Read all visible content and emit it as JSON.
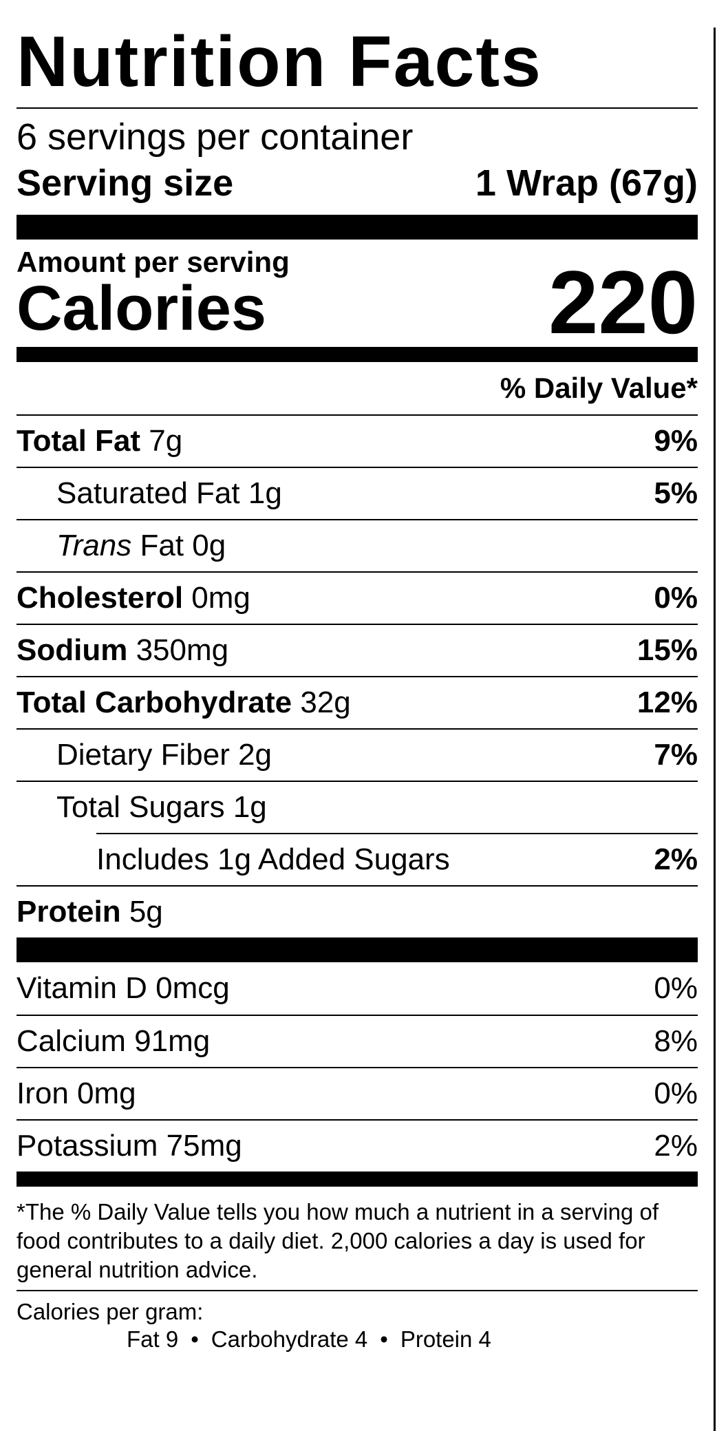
{
  "title": "Nutrition Facts",
  "servings_per_container": "6 servings per container",
  "serving_size": {
    "label": "Serving size",
    "value": "1 Wrap (67g)"
  },
  "amount_per_serving": "Amount per serving",
  "calories": {
    "label": "Calories",
    "value": "220"
  },
  "daily_value_header": "% Daily Value*",
  "nutrients": [
    {
      "name": "Total Fat",
      "amount": "7g",
      "dv": "9%"
    },
    {
      "name": "Saturated Fat",
      "amount": "1g",
      "dv": "5%"
    },
    {
      "name_italic": "Trans",
      "name": "Fat",
      "amount": "0g",
      "dv": ""
    },
    {
      "name": "Cholesterol",
      "amount": "0mg",
      "dv": "0%"
    },
    {
      "name": "Sodium",
      "amount": "350mg",
      "dv": "15%"
    },
    {
      "name": "Total Carbohydrate",
      "amount": "32g",
      "dv": "12%"
    },
    {
      "name": "Dietary Fiber",
      "amount": "2g",
      "dv": "7%"
    },
    {
      "name": "Total Sugars",
      "amount": "1g",
      "dv": ""
    },
    {
      "name": "Includes 1g Added Sugars",
      "dv": "2%"
    },
    {
      "name": "Protein",
      "amount": "5g",
      "dv": ""
    }
  ],
  "vitamins": [
    {
      "label": "Vitamin D 0mcg",
      "dv": "0%"
    },
    {
      "label": "Calcium 91mg",
      "dv": "8%"
    },
    {
      "label": "Iron 0mg",
      "dv": "0%"
    },
    {
      "label": "Potassium 75mg",
      "dv": "2%"
    }
  ],
  "footnote": "*The % Daily Value tells you how much a nutrient in a serving of food contributes to a daily diet. 2,000 calories a day is used for general nutrition advice.",
  "calories_per_gram": {
    "label": "Calories per gram:",
    "fat": "Fat 9",
    "carbohydrate": "Carbohydrate 4",
    "protein": "Protein 4",
    "separator": "•"
  }
}
